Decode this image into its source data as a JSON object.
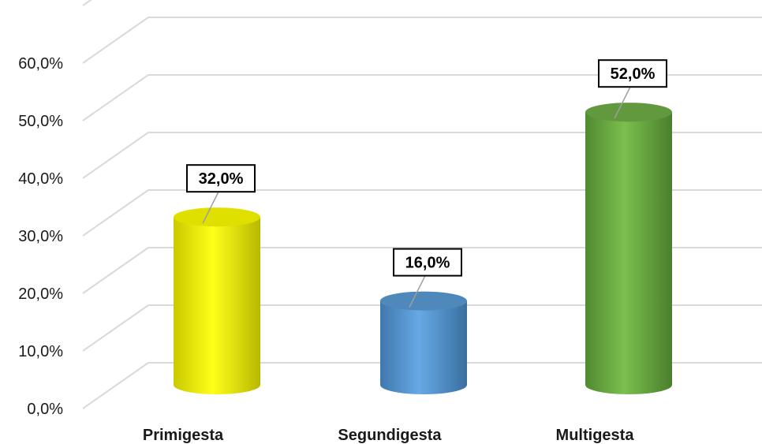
{
  "chart_data": {
    "type": "bar",
    "categories": [
      "Primigesta",
      "Segundigesta",
      "Multigesta"
    ],
    "values": [
      32.0,
      16.0,
      52.0
    ],
    "data_labels": [
      "32,0%",
      "16,0%",
      "52,0%"
    ],
    "y_tick_labels": [
      "0,0%",
      "10,0%",
      "20,0%",
      "30,0%",
      "40,0%",
      "50,0%",
      "60,0%"
    ],
    "ylim": [
      0,
      60
    ],
    "grid": true,
    "bar_shape": "cylinder",
    "colors": [
      "#ffff00",
      "#5b9bd5",
      "#70ad47"
    ]
  }
}
